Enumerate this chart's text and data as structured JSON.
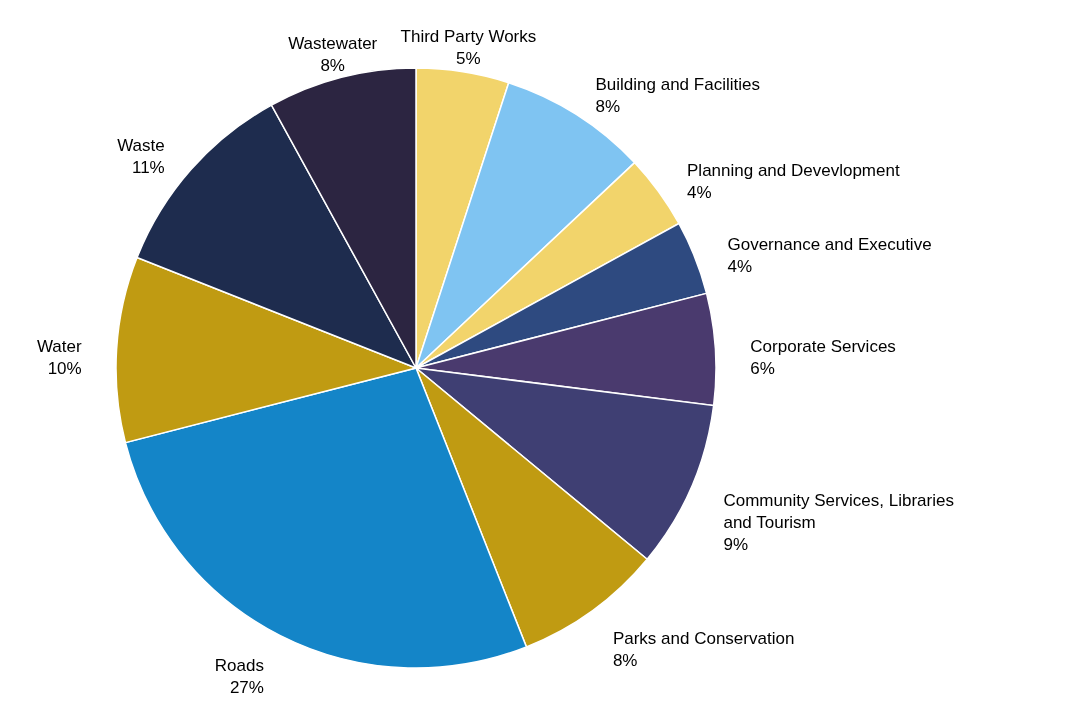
{
  "chart_data": {
    "type": "pie",
    "categories": [
      "Third Party Works",
      "Building and Facilities",
      "Planning and Devevlopment",
      "Governance and Executive",
      "Corporate Services",
      "Community Services, Libraries and Tourism",
      "Parks and Conservation",
      "Roads",
      "Water",
      "Waste",
      "Wastewater"
    ],
    "values": [
      5,
      8,
      4,
      4,
      6,
      9,
      8,
      27,
      10,
      11,
      8
    ],
    "value_labels": [
      "5%",
      "8%",
      "4%",
      "4%",
      "6%",
      "9%",
      "8%",
      "27%",
      "10%",
      "11%",
      "8%"
    ],
    "colors": [
      "#f2d46b",
      "#7fc4f2",
      "#f2d46b",
      "#2e4a80",
      "#4a3a6e",
      "#3f3f73",
      "#c09b12",
      "#1485c8",
      "#c09b12",
      "#1e2c4e",
      "#2c2541"
    ]
  }
}
